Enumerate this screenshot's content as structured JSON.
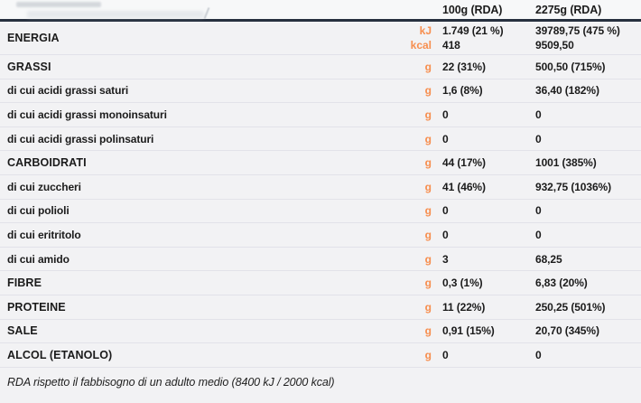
{
  "header": {
    "col_100g": "100g (RDA)",
    "col_2275g": "2275g (RDA)"
  },
  "energia": {
    "label": "ENERGIA",
    "kj": {
      "unit": "kJ",
      "v100": "1.749 (21 %)",
      "v2275": "39789,75 (475 %)"
    },
    "kcal": {
      "unit": "kcal",
      "v100": "418",
      "v2275": "9509,50"
    }
  },
  "rows": [
    {
      "label": "GRASSI",
      "unit": "g",
      "v100": "22 (31%)",
      "v2275": "500,50 (715%)"
    },
    {
      "label": "di cui acidi grassi saturi",
      "unit": "g",
      "v100": "1,6 (8%)",
      "v2275": "36,40  (182%)"
    },
    {
      "label": "di cui acidi grassi monoinsaturi",
      "unit": "g",
      "v100": "0",
      "v2275": "0"
    },
    {
      "label": "di cui acidi grassi polinsaturi",
      "unit": "g",
      "v100": "0",
      "v2275": "0"
    },
    {
      "label": "CARBOIDRATI",
      "unit": "g",
      "v100": "44 (17%)",
      "v2275": "1001 (385%)"
    },
    {
      "label": "di cui zuccheri",
      "unit": "g",
      "v100": "41 (46%)",
      "v2275": "932,75 (1036%)"
    },
    {
      "label": "di cui polioli",
      "unit": "g",
      "v100": "0",
      "v2275": "0"
    },
    {
      "label": "di cui eritritolo",
      "unit": "g",
      "v100": "0",
      "v2275": "0"
    },
    {
      "label": "di cui amido",
      "unit": "g",
      "v100": "3",
      "v2275": "68,25"
    },
    {
      "label": "FIBRE",
      "unit": "g",
      "v100": "0,3 (1%)",
      "v2275": "6,83 (20%)"
    },
    {
      "label": "PROTEINE",
      "unit": "g",
      "v100": "11 (22%)",
      "v2275": "250,25 (501%)"
    },
    {
      "label": "SALE",
      "unit": "g",
      "v100": "0,91 (15%)",
      "v2275": "20,70 (345%)"
    },
    {
      "label": "ALCOL (ETANOLO)",
      "unit": "g",
      "v100": "0",
      "v2275": "0"
    }
  ],
  "row_kinds": [
    "main",
    "sub",
    "sub",
    "sub",
    "main",
    "sub",
    "sub",
    "sub",
    "sub",
    "main",
    "main",
    "main",
    "main"
  ],
  "footnote": "RDA rispetto il fabbisogno di un adulto medio (8400 kJ / 2000 kcal)",
  "colors": {
    "accent_orange": "#f78e4e",
    "header_rule": "#27303f",
    "row_divider": "#e2e2e9",
    "background": "#f2f2f4",
    "text": "#1b1b1b"
  }
}
